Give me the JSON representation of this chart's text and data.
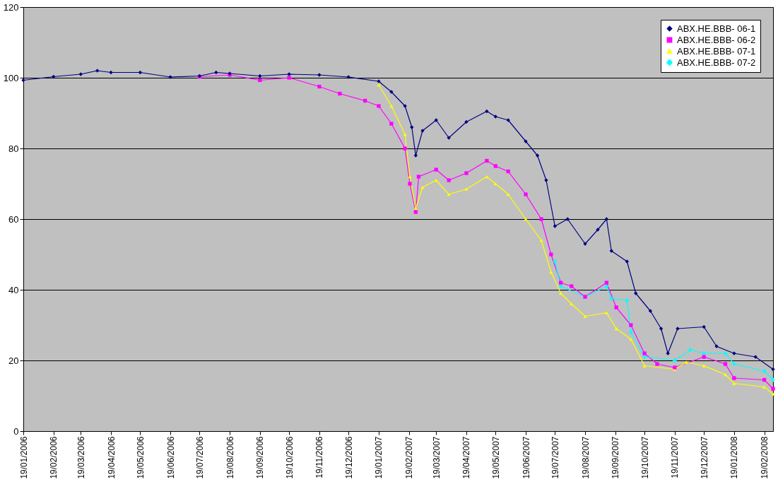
{
  "chart_data": {
    "type": "line",
    "xlim": [
      "2006-01-19",
      "2008-02-28"
    ],
    "xticks": [
      {
        "value": "2006-01-19",
        "label": "19/01/2006"
      },
      {
        "value": "2006-02-19",
        "label": "19/02/2006"
      },
      {
        "value": "2006-03-19",
        "label": "19/03/2006"
      },
      {
        "value": "2006-04-19",
        "label": "19/04/2006"
      },
      {
        "value": "2006-05-19",
        "label": "19/05/2006"
      },
      {
        "value": "2006-06-19",
        "label": "19/06/2006"
      },
      {
        "value": "2006-07-19",
        "label": "19/07/2006"
      },
      {
        "value": "2006-08-19",
        "label": "19/08/2006"
      },
      {
        "value": "2006-09-19",
        "label": "19/09/2006"
      },
      {
        "value": "2006-10-19",
        "label": "19/10/2006"
      },
      {
        "value": "2006-11-19",
        "label": "19/11/2006"
      },
      {
        "value": "2006-12-19",
        "label": "19/12/2006"
      },
      {
        "value": "2007-01-19",
        "label": "19/01/2007"
      },
      {
        "value": "2007-02-19",
        "label": "19/02/2007"
      },
      {
        "value": "2007-03-19",
        "label": "19/03/2007"
      },
      {
        "value": "2007-04-19",
        "label": "19/04/2007"
      },
      {
        "value": "2007-05-19",
        "label": "19/05/2007"
      },
      {
        "value": "2007-06-19",
        "label": "19/06/2007"
      },
      {
        "value": "2007-07-19",
        "label": "19/07/2007"
      },
      {
        "value": "2007-08-19",
        "label": "19/08/2007"
      },
      {
        "value": "2007-09-19",
        "label": "19/09/2007"
      },
      {
        "value": "2007-10-19",
        "label": "19/10/2007"
      },
      {
        "value": "2007-11-19",
        "label": "19/11/2007"
      },
      {
        "value": "2007-12-19",
        "label": "19/12/2007"
      },
      {
        "value": "2008-01-19",
        "label": "19/01/2008"
      },
      {
        "value": "2008-02-19",
        "label": "19/02/2008"
      }
    ],
    "ylim": [
      0,
      120
    ],
    "yticks": [
      0,
      20,
      40,
      60,
      80,
      100,
      120
    ],
    "grid": "y",
    "legend": "top right",
    "series": [
      {
        "name": "ABX.HE.BBB- 06-1",
        "color": "#000080",
        "marker": "diamond",
        "x": [
          "2006-01-19",
          "2006-02-19",
          "2006-03-19",
          "2006-04-05",
          "2006-04-19",
          "2006-05-19",
          "2006-06-19",
          "2006-07-19",
          "2006-08-05",
          "2006-08-19",
          "2006-09-19",
          "2006-10-19",
          "2006-11-19",
          "2006-12-19",
          "2007-01-19",
          "2007-02-01",
          "2007-02-15",
          "2007-02-22",
          "2007-02-26",
          "2007-03-05",
          "2007-03-19",
          "2007-04-01",
          "2007-04-19",
          "2007-05-10",
          "2007-05-19",
          "2007-06-01",
          "2007-06-19",
          "2007-07-01",
          "2007-07-10",
          "2007-07-19",
          "2007-08-01",
          "2007-08-19",
          "2007-09-01",
          "2007-09-10",
          "2007-09-15",
          "2007-10-01",
          "2007-10-10",
          "2007-10-25",
          "2007-11-05",
          "2007-11-12",
          "2007-11-22",
          "2007-12-19",
          "2008-01-01",
          "2008-01-19",
          "2008-02-10",
          "2008-02-28"
        ],
        "values": [
          99.3,
          100.3,
          101,
          102,
          101.5,
          101.5,
          100.2,
          100.5,
          101.5,
          101.2,
          100.5,
          101,
          100.8,
          100.2,
          99,
          96,
          92,
          86,
          78,
          85,
          88,
          83,
          87.5,
          90.5,
          89,
          88,
          82,
          78,
          71,
          58,
          60,
          53,
          57,
          60,
          51,
          48,
          39,
          34,
          29,
          22,
          29,
          29.5,
          24,
          22,
          21,
          17.5
        ]
      },
      {
        "name": "ABX.HE.BBB- 06-2",
        "color": "#ff00ff",
        "marker": "square",
        "x": [
          "2006-07-19",
          "2006-08-19",
          "2006-09-19",
          "2006-10-19",
          "2006-11-19",
          "2006-12-10",
          "2007-01-05",
          "2007-01-19",
          "2007-02-01",
          "2007-02-15",
          "2007-02-20",
          "2007-02-26",
          "2007-03-01",
          "2007-03-19",
          "2007-04-01",
          "2007-04-19",
          "2007-05-10",
          "2007-05-19",
          "2007-06-01",
          "2007-06-19",
          "2007-07-05",
          "2007-07-15",
          "2007-07-25",
          "2007-08-05",
          "2007-08-19",
          "2007-09-10",
          "2007-09-20",
          "2007-10-05",
          "2007-10-19",
          "2007-11-01",
          "2007-11-19",
          "2007-12-19",
          "2008-01-10",
          "2008-01-19",
          "2008-02-19",
          "2008-02-28"
        ],
        "values": [
          100.3,
          100.8,
          99.3,
          100,
          97.5,
          95.5,
          93.5,
          92,
          87,
          80,
          70,
          62,
          72,
          74,
          71,
          73,
          76.5,
          75,
          73.5,
          67,
          60,
          50,
          42,
          41,
          38,
          42,
          35,
          30,
          22,
          19,
          18,
          21,
          19,
          15,
          14.5,
          12
        ]
      },
      {
        "name": "ABX.HE.BBB- 07-1",
        "color": "#ffff00",
        "marker": "triangle",
        "x": [
          "2007-01-19",
          "2007-02-01",
          "2007-02-15",
          "2007-02-20",
          "2007-02-26",
          "2007-03-05",
          "2007-03-19",
          "2007-04-01",
          "2007-04-19",
          "2007-05-10",
          "2007-05-19",
          "2007-06-01",
          "2007-06-19",
          "2007-07-05",
          "2007-07-15",
          "2007-07-25",
          "2007-08-05",
          "2007-08-19",
          "2007-09-10",
          "2007-09-20",
          "2007-10-05",
          "2007-10-19",
          "2007-11-19",
          "2007-12-01",
          "2007-12-19",
          "2008-01-10",
          "2008-01-19",
          "2008-02-19",
          "2008-02-28"
        ],
        "values": [
          98,
          92,
          84,
          72,
          63,
          69,
          71,
          67,
          68.5,
          72,
          70,
          67,
          60,
          54,
          45,
          39,
          36,
          32.5,
          33.5,
          29,
          26,
          18.5,
          17.5,
          19.5,
          18.5,
          16,
          13.5,
          12.5,
          10.5
        ]
      },
      {
        "name": "ABX.HE.BBB- 07-2",
        "color": "#00ffff",
        "marker": "cross",
        "x": [
          "2007-07-19",
          "2007-07-25",
          "2007-08-19",
          "2007-09-10",
          "2007-09-15",
          "2007-10-01",
          "2007-10-05",
          "2007-10-19",
          "2007-11-19",
          "2007-12-05",
          "2007-12-19",
          "2008-01-10",
          "2008-01-19",
          "2008-02-19",
          "2008-02-28"
        ],
        "values": [
          48,
          41,
          38,
          41,
          37.5,
          37,
          28,
          21,
          20,
          23,
          22,
          22,
          19,
          17,
          14.5
        ]
      }
    ]
  }
}
